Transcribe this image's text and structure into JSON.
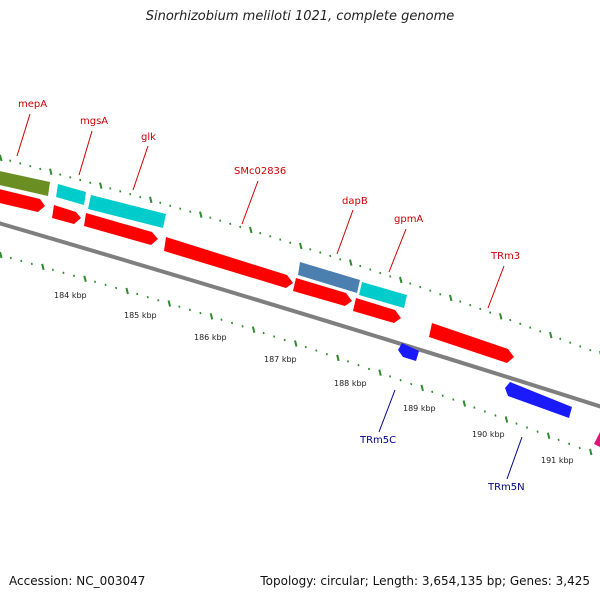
{
  "title": "Sinorhizobium meliloti 1021, complete genome",
  "footer": {
    "accession": "Accession: NC_003047",
    "stats": "Topology: circular; Length: 3,654,135 bp; Genes: 3,425"
  },
  "colors": {
    "backbone": "#888888",
    "forward_cds": "#ff0000",
    "reverse_cds": "#1a1aff",
    "rna": "#00d0d0",
    "other": "#6b8e23",
    "other2": "#4a7fb0",
    "tick": "#2e8b2e",
    "label_forward": "#cc0000",
    "label_reverse": "#00008b"
  },
  "scale": {
    "unit": "kbp",
    "labels": [
      "184 kbp",
      "185 kbp",
      "186 kbp",
      "187 kbp",
      "188 kbp",
      "189 kbp",
      "190 kbp",
      "191 kbp"
    ]
  },
  "gene_labels": [
    {
      "text": "mepA",
      "strand": "forward"
    },
    {
      "text": "mgsA",
      "strand": "forward"
    },
    {
      "text": "glk",
      "strand": "forward"
    },
    {
      "text": "SMc02836",
      "strand": "forward"
    },
    {
      "text": "dapB",
      "strand": "forward"
    },
    {
      "text": "gpmA",
      "strand": "forward"
    },
    {
      "text": "TRm3",
      "strand": "forward"
    },
    {
      "text": "TRm5C",
      "strand": "reverse"
    },
    {
      "text": "TRm5N",
      "strand": "reverse"
    }
  ]
}
